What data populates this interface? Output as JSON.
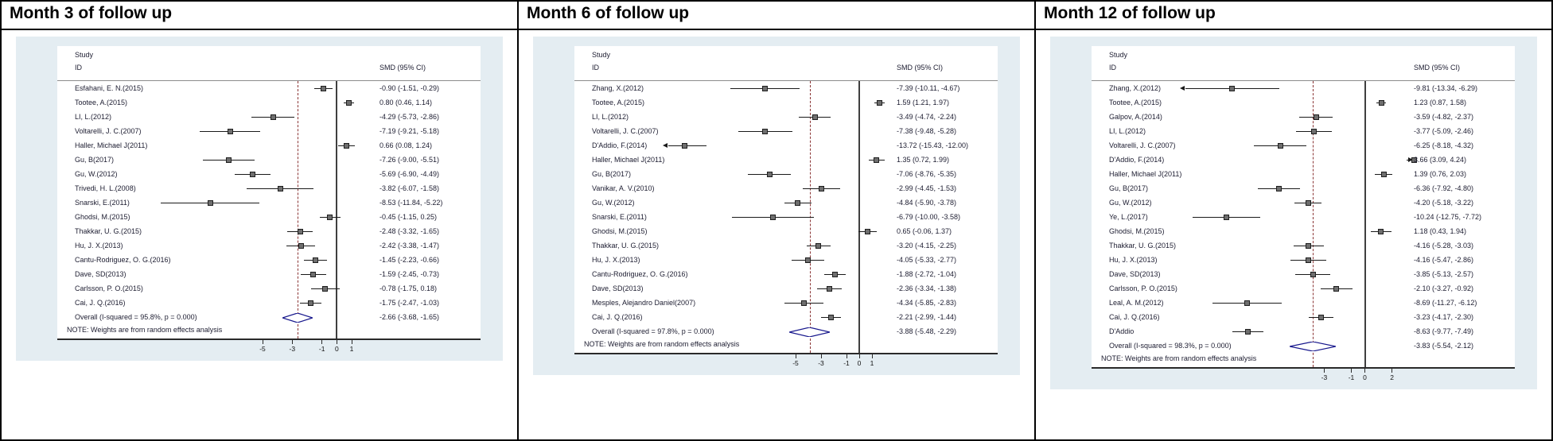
{
  "colors": {
    "plot_background": "#e4edf2",
    "dashed_overall_line": "#8b3535",
    "null_line": "#3f3f3f",
    "diamond_outline": "#16168c",
    "marker_fill": "#6e6e6e"
  },
  "chart_data": [
    {
      "type": "forest",
      "title": "Month 3 of follow up",
      "study_header_line1": "Study",
      "study_header_line2": "ID",
      "smd_header": "SMD (95% CI)",
      "note": "NOTE: Weights are from random effects analysis",
      "xlim": [
        -12.5,
        2.5
      ],
      "ticks": [
        -5,
        -3,
        -1,
        0,
        1
      ],
      "null_line": 0,
      "studies": [
        {
          "label": "Esfahani, E. N.(2015)",
          "est": -0.9,
          "lo": -1.51,
          "hi": -0.29,
          "ci_text": "-0.90 (-1.51, -0.29)"
        },
        {
          "label": "Tootee, A.(2015)",
          "est": 0.8,
          "lo": 0.46,
          "hi": 1.14,
          "ci_text": "0.80 (0.46, 1.14)"
        },
        {
          "label": "LI, L.(2012)",
          "est": -4.29,
          "lo": -5.73,
          "hi": -2.86,
          "ci_text": "-4.29 (-5.73, -2.86)"
        },
        {
          "label": "Voltarelli, J. C.(2007)",
          "est": -7.19,
          "lo": -9.21,
          "hi": -5.18,
          "ci_text": "-7.19 (-9.21, -5.18)"
        },
        {
          "label": "Haller, Michael J(2011)",
          "est": 0.66,
          "lo": 0.08,
          "hi": 1.24,
          "ci_text": "0.66 (0.08, 1.24)"
        },
        {
          "label": "Gu, B(2017)",
          "est": -7.26,
          "lo": -9.0,
          "hi": -5.51,
          "ci_text": "-7.26 (-9.00, -5.51)"
        },
        {
          "label": "Gu, W.(2012)",
          "est": -5.69,
          "lo": -6.9,
          "hi": -4.49,
          "ci_text": "-5.69 (-6.90, -4.49)"
        },
        {
          "label": "Trivedi, H. L.(2008)",
          "est": -3.82,
          "lo": -6.07,
          "hi": -1.58,
          "ci_text": "-3.82 (-6.07, -1.58)"
        },
        {
          "label": "Snarski, E.(2011)",
          "est": -8.53,
          "lo": -11.84,
          "hi": -5.22,
          "ci_text": "-8.53 (-11.84, -5.22)"
        },
        {
          "label": "Ghodsi, M.(2015)",
          "est": -0.45,
          "lo": -1.15,
          "hi": 0.25,
          "ci_text": "-0.45 (-1.15, 0.25)"
        },
        {
          "label": "Thakkar, U. G.(2015)",
          "est": -2.48,
          "lo": -3.32,
          "hi": -1.65,
          "ci_text": "-2.48 (-3.32, -1.65)"
        },
        {
          "label": "Hu, J. X.(2013)",
          "est": -2.42,
          "lo": -3.38,
          "hi": -1.47,
          "ci_text": "-2.42 (-3.38, -1.47)"
        },
        {
          "label": "Cantu-Rodriguez, O. G.(2016)",
          "est": -1.45,
          "lo": -2.23,
          "hi": -0.66,
          "ci_text": "-1.45 (-2.23, -0.66)"
        },
        {
          "label": "Dave, SD(2013)",
          "est": -1.59,
          "lo": -2.45,
          "hi": -0.73,
          "ci_text": "-1.59 (-2.45, -0.73)"
        },
        {
          "label": "Carlsson, P. O.(2015)",
          "est": -0.78,
          "lo": -1.75,
          "hi": 0.18,
          "ci_text": "-0.78 (-1.75, 0.18)"
        },
        {
          "label": "Cai, J. Q.(2016)",
          "est": -1.75,
          "lo": -2.47,
          "hi": -1.03,
          "ci_text": "-1.75 (-2.47, -1.03)"
        }
      ],
      "overall": {
        "label": "Overall  (I-squared = 95.8%, p = 0.000)",
        "est": -2.66,
        "lo": -3.68,
        "hi": -1.65,
        "ci_text": "-2.66 (-3.68, -1.65)"
      }
    },
    {
      "type": "forest",
      "title": "Month 6 of follow up",
      "study_header_line1": "Study",
      "study_header_line2": "ID",
      "smd_header": "SMD (95% CI)",
      "note": "NOTE: Weights are from random effects analysis",
      "xlim": [
        -15.0,
        2.5
      ],
      "ticks": [
        -5,
        -3,
        -1,
        0,
        1
      ],
      "null_line": 0,
      "studies": [
        {
          "label": "Zhang, X.(2012)",
          "est": -7.39,
          "lo": -10.11,
          "hi": -4.67,
          "ci_text": "-7.39 (-10.11, -4.67)"
        },
        {
          "label": "Tootee, A.(2015)",
          "est": 1.59,
          "lo": 1.21,
          "hi": 1.97,
          "ci_text": "1.59 (1.21, 1.97)"
        },
        {
          "label": "LI, L.(2012)",
          "est": -3.49,
          "lo": -4.74,
          "hi": -2.24,
          "ci_text": "-3.49 (-4.74, -2.24)"
        },
        {
          "label": "Voltarelli, J. C.(2007)",
          "est": -7.38,
          "lo": -9.48,
          "hi": -5.28,
          "ci_text": "-7.38 (-9.48, -5.28)"
        },
        {
          "label": "D'Addio, F.(2014)",
          "est": -13.72,
          "lo": -15.43,
          "hi": -12.0,
          "ci_text": "-13.72 (-15.43, -12.00)"
        },
        {
          "label": "Haller, Michael J(2011)",
          "est": 1.35,
          "lo": 0.72,
          "hi": 1.99,
          "ci_text": "1.35 (0.72, 1.99)"
        },
        {
          "label": "Gu, B(2017)",
          "est": -7.06,
          "lo": -8.76,
          "hi": -5.35,
          "ci_text": "-7.06 (-8.76, -5.35)"
        },
        {
          "label": "Vanikar, A. V.(2010)",
          "est": -2.99,
          "lo": -4.45,
          "hi": -1.53,
          "ci_text": "-2.99 (-4.45, -1.53)"
        },
        {
          "label": "Gu, W.(2012)",
          "est": -4.84,
          "lo": -5.9,
          "hi": -3.78,
          "ci_text": "-4.84 (-5.90, -3.78)"
        },
        {
          "label": "Snarski, E.(2011)",
          "est": -6.79,
          "lo": -10.0,
          "hi": -3.58,
          "ci_text": "-6.79 (-10.00, -3.58)"
        },
        {
          "label": "Ghodsi, M.(2015)",
          "est": 0.65,
          "lo": -0.06,
          "hi": 1.37,
          "ci_text": "0.65 (-0.06, 1.37)"
        },
        {
          "label": "Thakkar, U. G.(2015)",
          "est": -3.2,
          "lo": -4.15,
          "hi": -2.25,
          "ci_text": "-3.20 (-4.15, -2.25)"
        },
        {
          "label": "Hu, J. X.(2013)",
          "est": -4.05,
          "lo": -5.33,
          "hi": -2.77,
          "ci_text": "-4.05 (-5.33, -2.77)"
        },
        {
          "label": "Cantu-Rodriguez, O. G.(2016)",
          "est": -1.88,
          "lo": -2.72,
          "hi": -1.04,
          "ci_text": "-1.88 (-2.72, -1.04)"
        },
        {
          "label": "Dave, SD(2013)",
          "est": -2.36,
          "lo": -3.34,
          "hi": -1.38,
          "ci_text": "-2.36 (-3.34, -1.38)"
        },
        {
          "label": "Mesples, Alejandro Daniel(2007)",
          "est": -4.34,
          "lo": -5.85,
          "hi": -2.83,
          "ci_text": "-4.34 (-5.85, -2.83)"
        },
        {
          "label": "Cai, J. Q.(2016)",
          "est": -2.21,
          "lo": -2.99,
          "hi": -1.44,
          "ci_text": "-2.21 (-2.99, -1.44)"
        }
      ],
      "overall": {
        "label": "Overall  (I-squared = 97.8%, p = 0.000)",
        "est": -3.88,
        "lo": -5.48,
        "hi": -2.29,
        "ci_text": "-3.88 (-5.48, -2.29)"
      }
    },
    {
      "type": "forest",
      "title": "Month 12 of follow up",
      "study_header_line1": "Study",
      "study_header_line2": "ID",
      "smd_header": "SMD (95% CI)",
      "note": "NOTE: Weights are from random effects analysis",
      "xlim": [
        -13.25,
        3.2
      ],
      "ticks": [
        -3,
        -1,
        0,
        2
      ],
      "null_line": 0,
      "studies": [
        {
          "label": "Zhang, X.(2012)",
          "est": -9.81,
          "lo": -13.34,
          "hi": -6.29,
          "ci_text": "-9.81 (-13.34, -6.29)"
        },
        {
          "label": "Tootee, A.(2015)",
          "est": 1.23,
          "lo": 0.87,
          "hi": 1.58,
          "ci_text": "1.23 (0.87, 1.58)"
        },
        {
          "label": "Galpov, A.(2014)",
          "est": -3.59,
          "lo": -4.82,
          "hi": -2.37,
          "ci_text": "-3.59 (-4.82, -2.37)"
        },
        {
          "label": "LI, L.(2012)",
          "est": -3.77,
          "lo": -5.09,
          "hi": -2.46,
          "ci_text": "-3.77 (-5.09, -2.46)"
        },
        {
          "label": "Voltarelli, J. C.(2007)",
          "est": -6.25,
          "lo": -8.18,
          "hi": -4.32,
          "ci_text": "-6.25 (-8.18, -4.32)"
        },
        {
          "label": "D'Addio, F.(2014)",
          "est": 3.66,
          "lo": 3.09,
          "hi": 4.24,
          "ci_text": "3.66 (3.09, 4.24)"
        },
        {
          "label": "Haller, Michael J(2011)",
          "est": 1.39,
          "lo": 0.76,
          "hi": 2.03,
          "ci_text": "1.39 (0.76, 2.03)"
        },
        {
          "label": "Gu, B(2017)",
          "est": -6.36,
          "lo": -7.92,
          "hi": -4.8,
          "ci_text": "-6.36 (-7.92, -4.80)"
        },
        {
          "label": "Gu, W.(2012)",
          "est": -4.2,
          "lo": -5.18,
          "hi": -3.22,
          "ci_text": "-4.20 (-5.18, -3.22)"
        },
        {
          "label": "Ye, L.(2017)",
          "est": -10.24,
          "lo": -12.75,
          "hi": -7.72,
          "ci_text": "-10.24 (-12.75, -7.72)"
        },
        {
          "label": "Ghodsi, M.(2015)",
          "est": 1.18,
          "lo": 0.43,
          "hi": 1.94,
          "ci_text": "1.18 (0.43, 1.94)"
        },
        {
          "label": "Thakkar, U. G.(2015)",
          "est": -4.16,
          "lo": -5.28,
          "hi": -3.03,
          "ci_text": "-4.16 (-5.28, -3.03)"
        },
        {
          "label": "Hu, J. X.(2013)",
          "est": -4.16,
          "lo": -5.47,
          "hi": -2.86,
          "ci_text": "-4.16 (-5.47, -2.86)"
        },
        {
          "label": "Dave, SD(2013)",
          "est": -3.85,
          "lo": -5.13,
          "hi": -2.57,
          "ci_text": "-3.85 (-5.13, -2.57)"
        },
        {
          "label": "Carlsson, P. O.(2015)",
          "est": -2.1,
          "lo": -3.27,
          "hi": -0.92,
          "ci_text": "-2.10 (-3.27, -0.92)"
        },
        {
          "label": "Leal, A. M.(2012)",
          "est": -8.69,
          "lo": -11.27,
          "hi": -6.12,
          "ci_text": "-8.69 (-11.27, -6.12)"
        },
        {
          "label": "Cai, J. Q.(2016)",
          "est": -3.23,
          "lo": -4.17,
          "hi": -2.3,
          "ci_text": "-3.23 (-4.17, -2.30)"
        },
        {
          "label": "D'Addio",
          "est": -8.63,
          "lo": -9.77,
          "hi": -7.49,
          "ci_text": "-8.63 (-9.77, -7.49)"
        }
      ],
      "overall": {
        "label": "Overall  (I-squared = 98.3%, p = 0.000)",
        "est": -3.83,
        "lo": -5.54,
        "hi": -2.12,
        "ci_text": "-3.83 (-5.54, -2.12)"
      }
    }
  ]
}
